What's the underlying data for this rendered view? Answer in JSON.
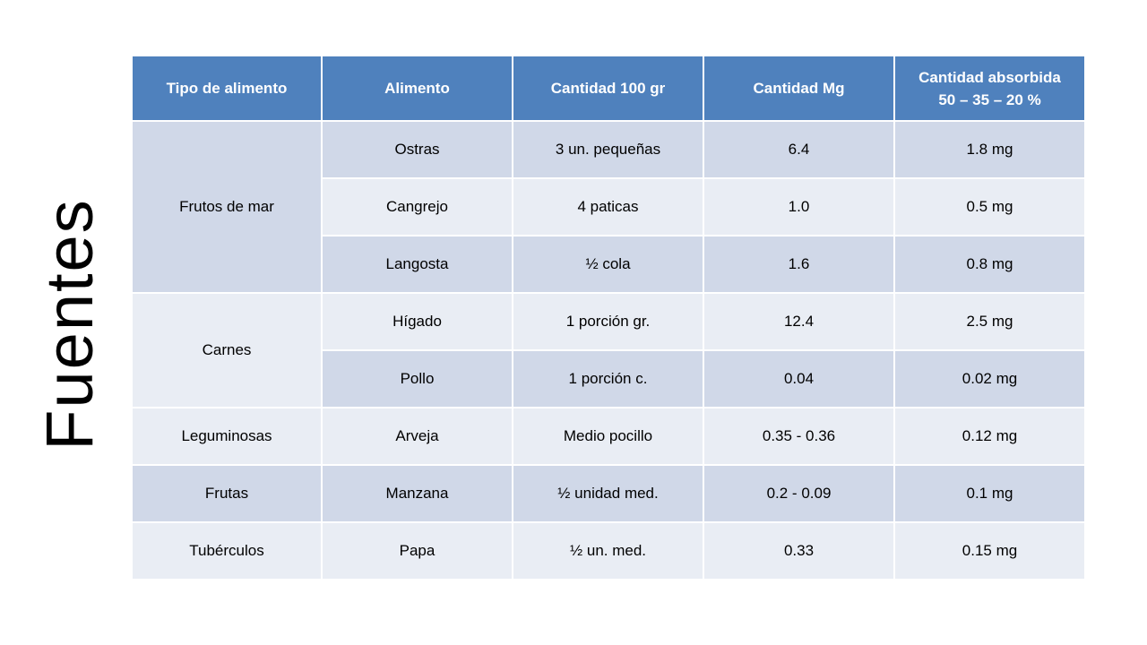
{
  "title": "Fuentes",
  "table": {
    "headers": [
      "Tipo  de alimento",
      "Alimento",
      "Cantidad 100 gr",
      "Cantidad Mg",
      [
        "Cantidad absorbida",
        "50 – 35 – 20 %"
      ]
    ],
    "groups": [
      {
        "type": "Frutos de mar",
        "rows": [
          [
            "Ostras",
            "3 un. pequeñas",
            "6.4",
            "1.8 mg"
          ],
          [
            "Cangrejo",
            "4 paticas",
            "1.0",
            "0.5 mg"
          ],
          [
            "Langosta",
            "½ cola",
            "1.6",
            "0.8 mg"
          ]
        ]
      },
      {
        "type": "Carnes",
        "rows": [
          [
            "Hígado",
            "1 porción gr.",
            "12.4",
            "2.5 mg"
          ],
          [
            "Pollo",
            "1 porción c.",
            "0.04",
            "0.02 mg"
          ]
        ]
      },
      {
        "type": "Leguminosas",
        "rows": [
          [
            "Arveja",
            "Medio pocillo",
            "0.35 - 0.36",
            "0.12 mg"
          ]
        ]
      },
      {
        "type": "Frutas",
        "rows": [
          [
            "Manzana",
            "½ unidad med.",
            "0.2 - 0.09",
            "0.1 mg"
          ]
        ]
      },
      {
        "type": "Tubérculos",
        "rows": [
          [
            "Papa",
            "½ un. med.",
            "0.33",
            "0.15 mg"
          ]
        ]
      }
    ]
  },
  "colors": {
    "header": "#4f81bd",
    "band_dark": "#d0d8e8",
    "band_light": "#e9edf4"
  }
}
